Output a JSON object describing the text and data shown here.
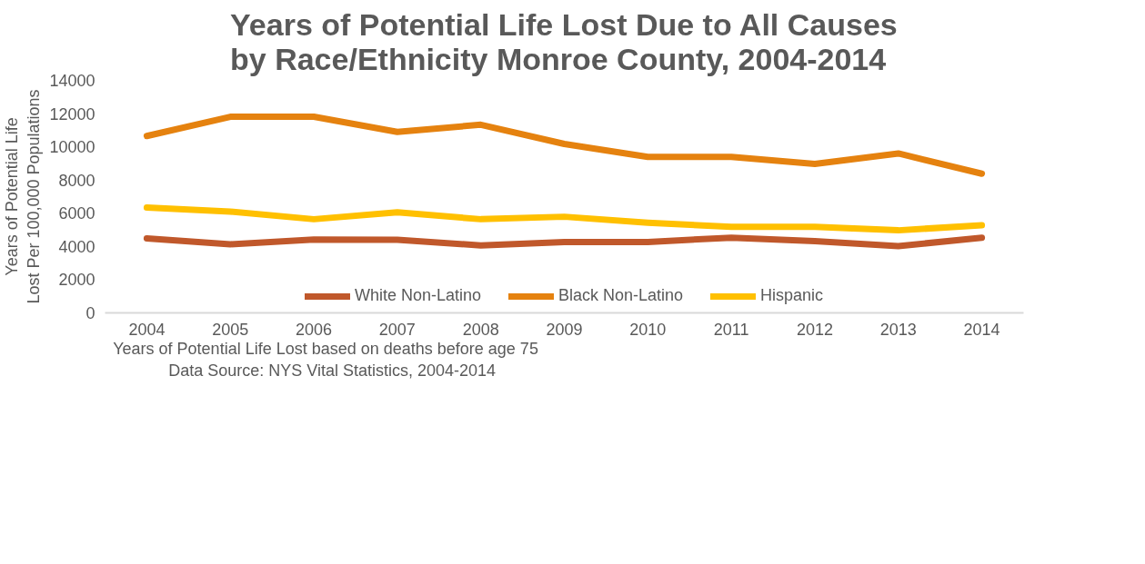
{
  "chart_data": {
    "type": "line",
    "title": "Years of Potential Life Lost Due to All Causes by Race/Ethnicity Monroe County, 2004-2014",
    "ylabel": "Years of Potential Life Lost Per 100,000 Populations",
    "categories": [
      "2004",
      "2005",
      "2006",
      "2007",
      "2008",
      "2009",
      "2010",
      "2011",
      "2012",
      "2013",
      "2014"
    ],
    "series": [
      {
        "name": "White Non-Latino",
        "color": "#c0582b",
        "values": [
          4480,
          4130,
          4420,
          4400,
          4060,
          4270,
          4270,
          4530,
          4320,
          4020,
          4530
        ]
      },
      {
        "name": "Black Non-Latino",
        "color": "#e5820f",
        "values": [
          10650,
          11810,
          11810,
          10900,
          11330,
          10170,
          9390,
          9390,
          8970,
          9600,
          8380
        ]
      },
      {
        "name": "Hispanic",
        "color": "#ffc000",
        "values": [
          6340,
          6100,
          5640,
          6060,
          5640,
          5790,
          5430,
          5180,
          5180,
          4970,
          5280
        ]
      }
    ],
    "ylim": [
      0,
      14000
    ],
    "yticks": [
      0,
      2000,
      4000,
      6000,
      8000,
      10000,
      12000,
      14000
    ],
    "grid": false,
    "legend": "bottom",
    "marker": "none",
    "line_style": "solid",
    "annotations": [
      "Years of Potential Life Lost based on deaths before age 75",
      "Data Source: NYS Vital Statistics, 2004-2014"
    ]
  }
}
